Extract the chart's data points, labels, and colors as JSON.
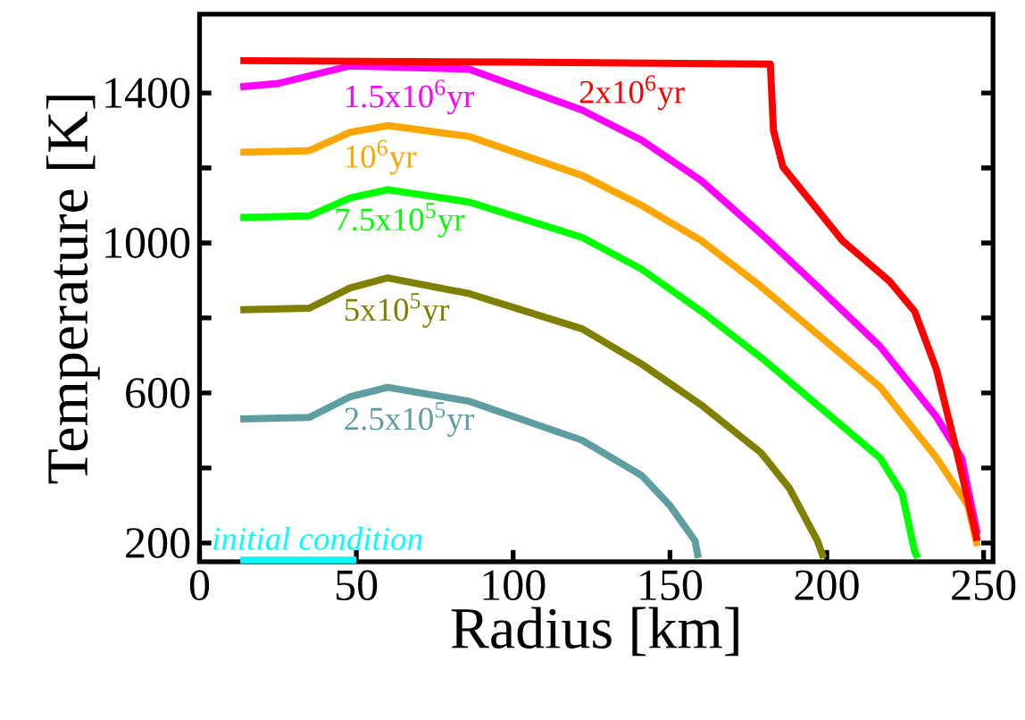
{
  "chart_data": {
    "type": "line",
    "xlabel": "Radius [km]",
    "ylabel": "Temperature [K]",
    "xlim": [
      0,
      253
    ],
    "ylim": [
      150,
      1610
    ],
    "xticks": [
      0,
      50,
      100,
      150,
      200,
      250
    ],
    "yticks": [
      200,
      {
        "value": 400,
        "label": null
      },
      600,
      {
        "value": 800,
        "label": null
      },
      1000,
      {
        "value": 1200,
        "label": null
      },
      1400
    ],
    "series": [
      {
        "name": "initial condition",
        "color": "#00ffff",
        "x": [
          13,
          50
        ],
        "values": [
          155,
          155
        ]
      },
      {
        "name": "2.5x10$^{5}$yr",
        "color": "#5f9ea0",
        "x": [
          13,
          35,
          48,
          60,
          86,
          122,
          141,
          150,
          158,
          159
        ],
        "values": [
          531,
          535,
          590,
          615,
          578,
          474,
          380,
          300,
          206,
          160
        ]
      },
      {
        "name": "5x10$^{5}$yr",
        "color": "#808000",
        "x": [
          13,
          35,
          48,
          60,
          86,
          122,
          141,
          160,
          179,
          188,
          197,
          199
        ],
        "values": [
          822,
          826,
          880,
          907,
          865,
          771,
          677,
          568,
          441,
          347,
          206,
          160
        ]
      },
      {
        "name": "7.5x10$^{5}$yr",
        "color": "#00ff00",
        "x": [
          13,
          35,
          48,
          60,
          86,
          122,
          141,
          160,
          179,
          197,
          217,
          224,
          228,
          229
        ],
        "values": [
          1068,
          1072,
          1120,
          1142,
          1109,
          1015,
          930,
          818,
          695,
          568,
          427,
          333,
          178,
          160
        ]
      },
      {
        "name": "10$^{6}$yr",
        "color": "#ffa500",
        "x": [
          13,
          35,
          48,
          60,
          86,
          122,
          141,
          160,
          179,
          197,
          217,
          235,
          245,
          248
        ],
        "values": [
          1242,
          1246,
          1295,
          1313,
          1284,
          1180,
          1100,
          1006,
          884,
          757,
          616,
          427,
          300,
          192
        ]
      },
      {
        "name": "1.5x10$^{6}$yr",
        "color": "#ff00ff",
        "x": [
          13,
          25,
          48,
          86,
          122,
          141,
          160,
          179,
          197,
          217,
          235,
          243,
          248
        ],
        "values": [
          1416,
          1425,
          1472,
          1463,
          1354,
          1274,
          1166,
          1025,
          884,
          724,
          536,
          427,
          224
        ]
      },
      {
        "name": "2x10$^{6}$yr",
        "color": "#ff0000",
        "x": [
          13,
          100,
          182,
          183,
          186,
          205,
          220,
          228,
          235,
          241,
          248
        ],
        "values": [
          1486,
          1482,
          1477,
          1300,
          1203,
          1006,
          898,
          818,
          662,
          459,
          206
        ]
      }
    ]
  }
}
